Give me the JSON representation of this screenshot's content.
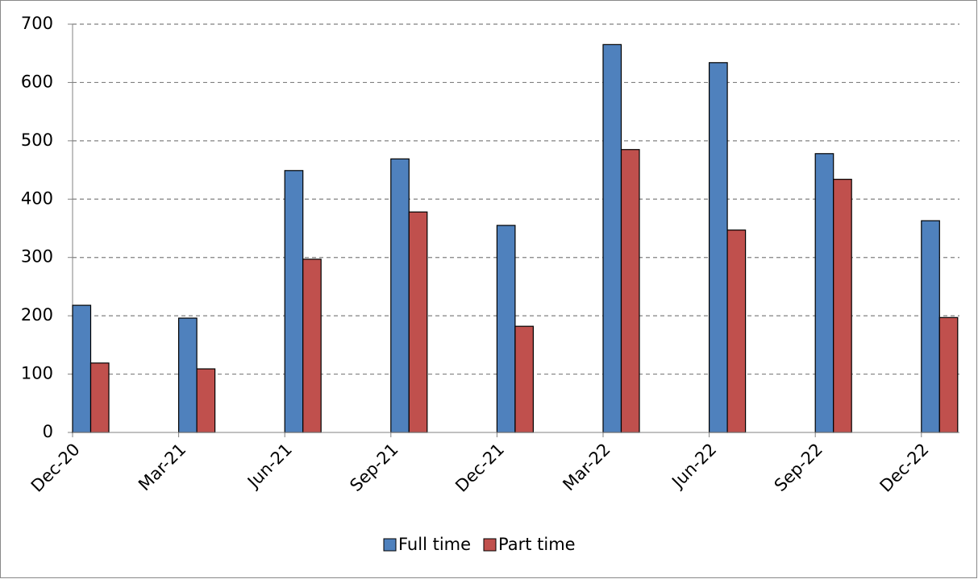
{
  "chart_data": {
    "type": "bar",
    "categories": [
      "Dec-20",
      "Mar-21",
      "Jun-21",
      "Sep-21",
      "Dec-21",
      "Mar-22",
      "Jun-22",
      "Sep-22",
      "Dec-22"
    ],
    "series": [
      {
        "name": "Full time",
        "color": "#4f81bd",
        "values": [
          218,
          196,
          449,
          469,
          355,
          665,
          634,
          478,
          363
        ]
      },
      {
        "name": "Part time",
        "color": "#c0504d",
        "values": [
          119,
          109,
          297,
          378,
          182,
          485,
          347,
          434,
          197
        ]
      }
    ],
    "ylim": [
      0,
      700
    ],
    "yticks": [
      0,
      100,
      200,
      300,
      400,
      500,
      600,
      700
    ],
    "grid": true,
    "legend": "bottom"
  }
}
